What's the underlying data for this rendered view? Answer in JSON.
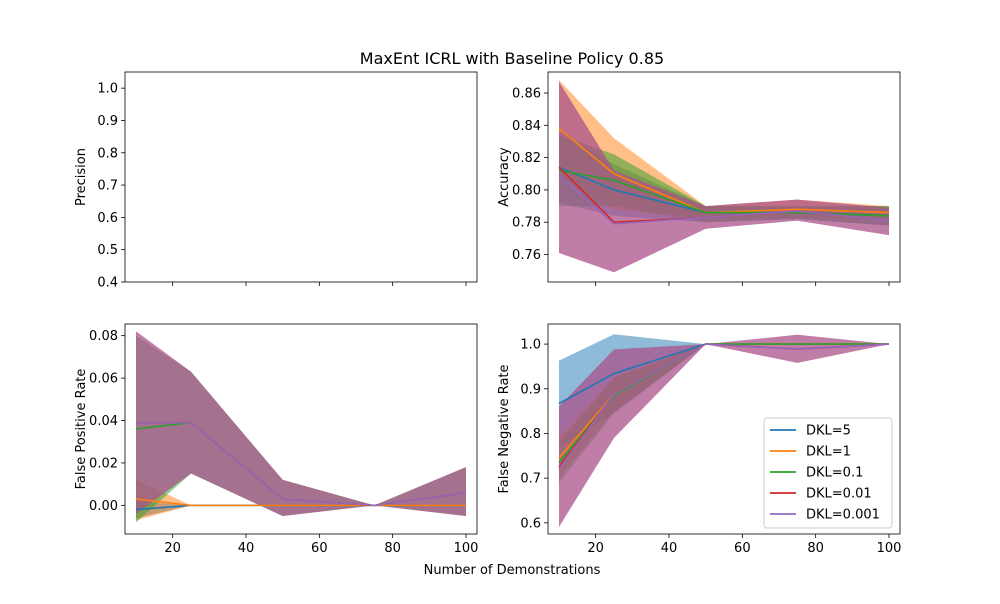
{
  "figure": {
    "title": "MaxEnt ICRL with Baseline Policy 0.85",
    "shared_xlabel": "Number of Demonstrations"
  },
  "legend": {
    "entries": [
      {
        "label": "DKL=5",
        "color": "#1f77b4"
      },
      {
        "label": "DKL=1",
        "color": "#ff7f0e"
      },
      {
        "label": "DKL=0.1",
        "color": "#2ca02c"
      },
      {
        "label": "DKL=0.01",
        "color": "#d62728"
      },
      {
        "label": "DKL=0.001",
        "color": "#9467bd"
      }
    ],
    "placement": "lower-right of bottom-right panel"
  },
  "chart_data": [
    {
      "type": "line",
      "panel": "top-left",
      "ylabel": "Precision",
      "xlim": [
        7,
        103
      ],
      "ylim": [
        0.4,
        1.05
      ],
      "xticks": [
        20,
        40,
        60,
        80,
        100
      ],
      "show_xtick_labels": false,
      "yticks": [
        0.4,
        0.5,
        0.6,
        0.7,
        0.8,
        0.9,
        1.0
      ],
      "ytick_labels": [
        "0.4",
        "0.5",
        "0.6",
        "0.7",
        "0.8",
        "0.9",
        "1.0"
      ],
      "x": [
        10,
        25,
        50,
        75,
        100
      ],
      "series": []
    },
    {
      "type": "line",
      "panel": "top-right",
      "ylabel": "Accuracy",
      "xlim": [
        7,
        103
      ],
      "ylim": [
        0.743,
        0.873
      ],
      "xticks": [
        20,
        40,
        60,
        80,
        100
      ],
      "show_xtick_labels": false,
      "yticks": [
        0.76,
        0.78,
        0.8,
        0.82,
        0.84,
        0.86
      ],
      "ytick_labels": [
        "0.76",
        "0.78",
        "0.80",
        "0.82",
        "0.84",
        "0.86"
      ],
      "x": [
        10,
        25,
        50,
        75,
        100
      ],
      "series": [
        {
          "name": "DKL=5",
          "color": "#1f77b4",
          "values": [
            0.814,
            0.8,
            0.786,
            0.786,
            0.784
          ],
          "lower": [
            0.792,
            0.784,
            0.78,
            0.782,
            0.778
          ],
          "upper": [
            0.836,
            0.816,
            0.79,
            0.79,
            0.79
          ]
        },
        {
          "name": "DKL=1",
          "color": "#ff7f0e",
          "values": [
            0.838,
            0.81,
            0.786,
            0.788,
            0.786
          ],
          "lower": [
            0.808,
            0.788,
            0.782,
            0.783,
            0.781
          ],
          "upper": [
            0.868,
            0.832,
            0.79,
            0.794,
            0.79
          ]
        },
        {
          "name": "DKL=0.1",
          "color": "#2ca02c",
          "values": [
            0.812,
            0.806,
            0.786,
            0.786,
            0.784
          ],
          "lower": [
            0.79,
            0.79,
            0.78,
            0.782,
            0.778
          ],
          "upper": [
            0.834,
            0.822,
            0.79,
            0.79,
            0.79
          ]
        },
        {
          "name": "DKL=0.01",
          "color": "#d62728",
          "values": [
            0.814,
            0.78,
            0.783,
            0.787,
            0.781
          ],
          "lower": [
            0.761,
            0.749,
            0.776,
            0.781,
            0.772
          ],
          "upper": [
            0.867,
            0.812,
            0.79,
            0.794,
            0.789
          ]
        },
        {
          "name": "DKL=0.001",
          "color": "#9467bd",
          "values": [
            0.809,
            0.779,
            0.783,
            0.787,
            0.781
          ],
          "lower": [
            0.761,
            0.749,
            0.776,
            0.781,
            0.772
          ],
          "upper": [
            0.867,
            0.812,
            0.79,
            0.794,
            0.789
          ]
        }
      ]
    },
    {
      "type": "line",
      "panel": "bottom-left",
      "ylabel": "False Positive Rate",
      "xlim": [
        7,
        103
      ],
      "ylim": [
        -0.0135,
        0.0855
      ],
      "xticks": [
        20,
        40,
        60,
        80,
        100
      ],
      "show_xtick_labels": true,
      "xtick_labels": [
        "20",
        "40",
        "60",
        "80",
        "100"
      ],
      "yticks": [
        0.0,
        0.02,
        0.04,
        0.06,
        0.08
      ],
      "ytick_labels": [
        "0.00",
        "0.02",
        "0.04",
        "0.06",
        "0.08"
      ],
      "x": [
        10,
        25,
        50,
        75,
        100
      ],
      "series": [
        {
          "name": "DKL=5",
          "color": "#1f77b4",
          "values": [
            -0.002,
            0.0,
            0.0,
            0.0,
            0.0
          ],
          "lower": [
            -0.006,
            0.0,
            0.0,
            0.0,
            0.0
          ],
          "upper": [
            0.002,
            0.0,
            0.0,
            0.0,
            0.0
          ]
        },
        {
          "name": "DKL=1",
          "color": "#ff7f0e",
          "values": [
            0.003,
            0.0,
            0.0,
            0.0,
            0.0
          ],
          "lower": [
            -0.007,
            0.0,
            0.0,
            0.0,
            0.0
          ],
          "upper": [
            0.012,
            0.0,
            0.0,
            0.0,
            0.0
          ]
        },
        {
          "name": "DKL=0.1",
          "color": "#2ca02c",
          "values": [
            0.036,
            0.039,
            0.003,
            0.0,
            0.006
          ],
          "lower": [
            -0.008,
            0.015,
            -0.005,
            0.0,
            -0.005
          ],
          "upper": [
            0.08,
            0.063,
            0.012,
            0.0,
            0.018
          ]
        },
        {
          "name": "DKL=0.01",
          "color": "#d62728",
          "values": [
            0.039,
            0.039,
            0.003,
            0.0,
            0.006
          ],
          "lower": [
            -0.004,
            0.015,
            -0.005,
            0.0,
            -0.005
          ],
          "upper": [
            0.082,
            0.063,
            0.012,
            0.0,
            0.018
          ]
        },
        {
          "name": "DKL=0.001",
          "color": "#9467bd",
          "values": [
            0.039,
            0.039,
            0.003,
            0.0,
            0.006
          ],
          "lower": [
            -0.004,
            0.015,
            -0.005,
            0.0,
            -0.005
          ],
          "upper": [
            0.082,
            0.063,
            0.012,
            0.0,
            0.018
          ]
        }
      ]
    },
    {
      "type": "line",
      "panel": "bottom-right",
      "ylabel": "False Negative Rate",
      "xlim": [
        7,
        103
      ],
      "ylim": [
        0.575,
        1.045
      ],
      "xticks": [
        20,
        40,
        60,
        80,
        100
      ],
      "show_xtick_labels": true,
      "xtick_labels": [
        "20",
        "40",
        "60",
        "80",
        "100"
      ],
      "yticks": [
        0.6,
        0.7,
        0.8,
        0.9,
        1.0
      ],
      "ytick_labels": [
        "0.6",
        "0.7",
        "0.8",
        "0.9",
        "1.0"
      ],
      "x": [
        10,
        25,
        50,
        75,
        100
      ],
      "series": [
        {
          "name": "DKL=5",
          "color": "#1f77b4",
          "values": [
            0.867,
            0.934,
            1.0,
            1.0,
            1.0
          ],
          "lower": [
            0.77,
            0.846,
            1.0,
            1.0,
            1.0
          ],
          "upper": [
            0.963,
            1.022,
            1.0,
            1.0,
            1.0
          ]
        },
        {
          "name": "DKL=1",
          "color": "#ff7f0e",
          "values": [
            0.745,
            0.888,
            1.0,
            1.0,
            1.0
          ],
          "lower": [
            0.7,
            0.85,
            1.0,
            1.0,
            1.0
          ],
          "upper": [
            0.79,
            0.926,
            1.0,
            1.0,
            1.0
          ]
        },
        {
          "name": "DKL=0.1",
          "color": "#2ca02c",
          "values": [
            0.735,
            0.885,
            1.0,
            1.0,
            1.0
          ],
          "lower": [
            0.69,
            0.845,
            1.0,
            1.0,
            1.0
          ],
          "upper": [
            0.78,
            0.925,
            1.0,
            1.0,
            1.0
          ]
        },
        {
          "name": "DKL=0.01",
          "color": "#d62728",
          "values": [
            0.725,
            0.888,
            1.0,
            0.989,
            1.0
          ],
          "lower": [
            0.592,
            0.79,
            1.0,
            0.958,
            1.0
          ],
          "upper": [
            0.86,
            0.988,
            1.0,
            1.021,
            1.0
          ]
        },
        {
          "name": "DKL=0.001",
          "color": "#9467bd",
          "values": [
            0.72,
            0.888,
            1.0,
            0.989,
            1.0
          ],
          "lower": [
            0.59,
            0.79,
            1.0,
            0.958,
            1.0
          ],
          "upper": [
            0.86,
            0.988,
            1.0,
            1.021,
            1.0
          ]
        }
      ]
    }
  ]
}
